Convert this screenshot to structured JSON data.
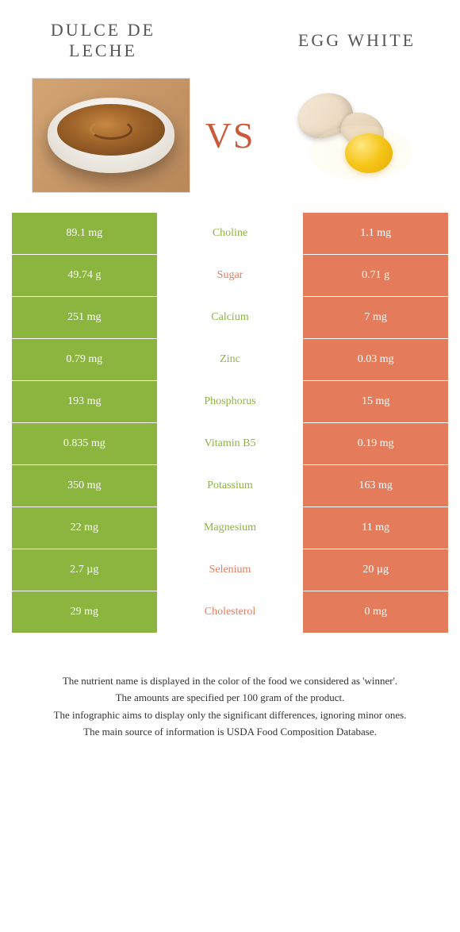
{
  "colors": {
    "green": "#8bb53f",
    "orange": "#e47c5b",
    "vs": "#cc5a3a"
  },
  "left_food": {
    "title": "DULCE DE LECHE"
  },
  "right_food": {
    "title": "EGG WHITE"
  },
  "vs_label": "VS",
  "rows": [
    {
      "nutrient": "Choline",
      "left": "89.1 mg",
      "right": "1.1 mg",
      "winner": "left"
    },
    {
      "nutrient": "Sugar",
      "left": "49.74 g",
      "right": "0.71 g",
      "winner": "right"
    },
    {
      "nutrient": "Calcium",
      "left": "251 mg",
      "right": "7 mg",
      "winner": "left"
    },
    {
      "nutrient": "Zinc",
      "left": "0.79 mg",
      "right": "0.03 mg",
      "winner": "left"
    },
    {
      "nutrient": "Phosphorus",
      "left": "193 mg",
      "right": "15 mg",
      "winner": "left"
    },
    {
      "nutrient": "Vitamin B5",
      "left": "0.835 mg",
      "right": "0.19 mg",
      "winner": "left"
    },
    {
      "nutrient": "Potassium",
      "left": "350 mg",
      "right": "163 mg",
      "winner": "left"
    },
    {
      "nutrient": "Magnesium",
      "left": "22 mg",
      "right": "11 mg",
      "winner": "left"
    },
    {
      "nutrient": "Selenium",
      "left": "2.7 µg",
      "right": "20 µg",
      "winner": "right"
    },
    {
      "nutrient": "Cholesterol",
      "left": "29 mg",
      "right": "0 mg",
      "winner": "right"
    }
  ],
  "footer": {
    "line1": "The nutrient name is displayed in the color of the food we considered as 'winner'.",
    "line2": "The amounts are specified per 100 gram of the product.",
    "line3": "The infographic aims to display only the significant differences, ignoring minor ones.",
    "line4": "The main source of information is USDA Food Composition Database."
  }
}
